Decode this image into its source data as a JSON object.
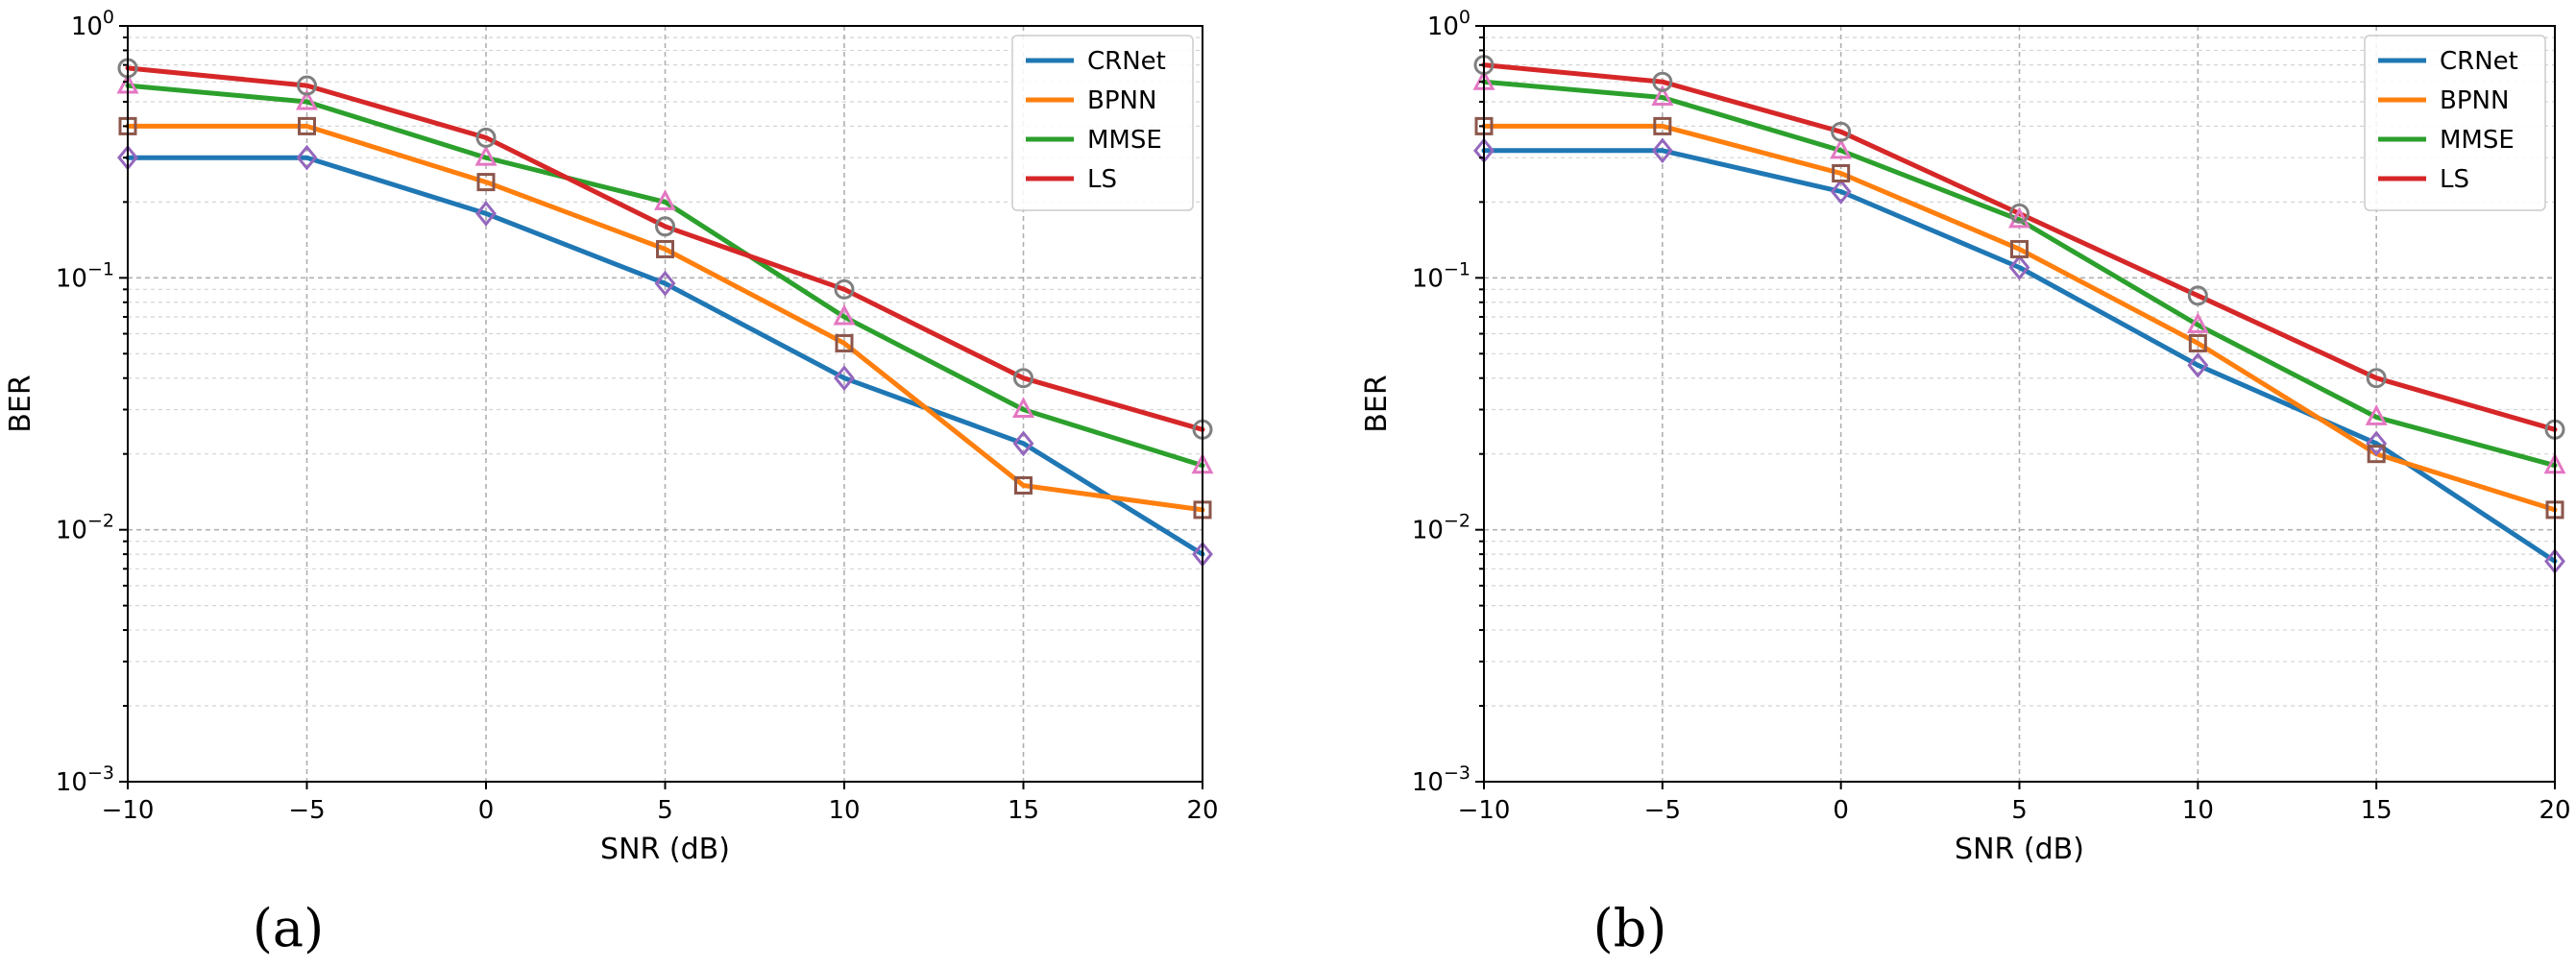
{
  "chart_data": [
    {
      "type": "line",
      "caption": "(a)",
      "xlabel": "SNR (dB)",
      "ylabel": "BER",
      "yscale": "log",
      "xlim": [
        -10,
        20
      ],
      "ylim": [
        0.001,
        1
      ],
      "grid": true,
      "legend_position": "top-right",
      "x": [
        -10,
        -5,
        0,
        5,
        10,
        15,
        20
      ],
      "x_tick_labels": [
        "−10",
        "−5",
        "0",
        "5",
        "10",
        "15",
        "20"
      ],
      "y_tick_values": [
        1,
        0.1,
        0.01,
        0.001
      ],
      "y_tick_labels": [
        {
          "base": "10",
          "exp": "0"
        },
        {
          "base": "10",
          "exp": "−1"
        },
        {
          "base": "10",
          "exp": "−2"
        },
        {
          "base": "10",
          "exp": "−3"
        }
      ],
      "series": [
        {
          "name": "CRNet",
          "color": "#1f77b4",
          "marker": "diamond",
          "values": [
            0.3,
            0.3,
            0.18,
            0.095,
            0.04,
            0.022,
            0.008
          ]
        },
        {
          "name": "BPNN",
          "color": "#ff7f0e",
          "marker": "square",
          "values": [
            0.4,
            0.4,
            0.24,
            0.13,
            0.055,
            0.015,
            0.012
          ]
        },
        {
          "name": "MMSE",
          "color": "#2ca02c",
          "marker": "triangle",
          "values": [
            0.58,
            0.5,
            0.3,
            0.2,
            0.07,
            0.03,
            0.018
          ]
        },
        {
          "name": "LS",
          "color": "#d62728",
          "marker": "circle",
          "values": [
            0.68,
            0.58,
            0.36,
            0.16,
            0.09,
            0.04,
            0.025
          ]
        }
      ]
    },
    {
      "type": "line",
      "caption": "(b)",
      "xlabel": "SNR (dB)",
      "ylabel": "BER",
      "yscale": "log",
      "xlim": [
        -10,
        20
      ],
      "ylim": [
        0.001,
        1
      ],
      "grid": true,
      "legend_position": "top-right",
      "x": [
        -10,
        -5,
        0,
        5,
        10,
        15,
        20
      ],
      "x_tick_labels": [
        "−10",
        "−5",
        "0",
        "5",
        "10",
        "15",
        "20"
      ],
      "y_tick_values": [
        1,
        0.1,
        0.01,
        0.001
      ],
      "y_tick_labels": [
        {
          "base": "10",
          "exp": "0"
        },
        {
          "base": "10",
          "exp": "−1"
        },
        {
          "base": "10",
          "exp": "−2"
        },
        {
          "base": "10",
          "exp": "−3"
        }
      ],
      "series": [
        {
          "name": "CRNet",
          "color": "#1f77b4",
          "marker": "diamond",
          "values": [
            0.32,
            0.32,
            0.22,
            0.11,
            0.045,
            0.022,
            0.0075
          ]
        },
        {
          "name": "BPNN",
          "color": "#ff7f0e",
          "marker": "square",
          "values": [
            0.4,
            0.4,
            0.26,
            0.13,
            0.055,
            0.02,
            0.012
          ]
        },
        {
          "name": "MMSE",
          "color": "#2ca02c",
          "marker": "triangle",
          "values": [
            0.6,
            0.52,
            0.32,
            0.17,
            0.065,
            0.028,
            0.018
          ]
        },
        {
          "name": "LS",
          "color": "#d62728",
          "marker": "circle",
          "values": [
            0.7,
            0.6,
            0.38,
            0.18,
            0.085,
            0.04,
            0.025
          ]
        }
      ]
    }
  ]
}
